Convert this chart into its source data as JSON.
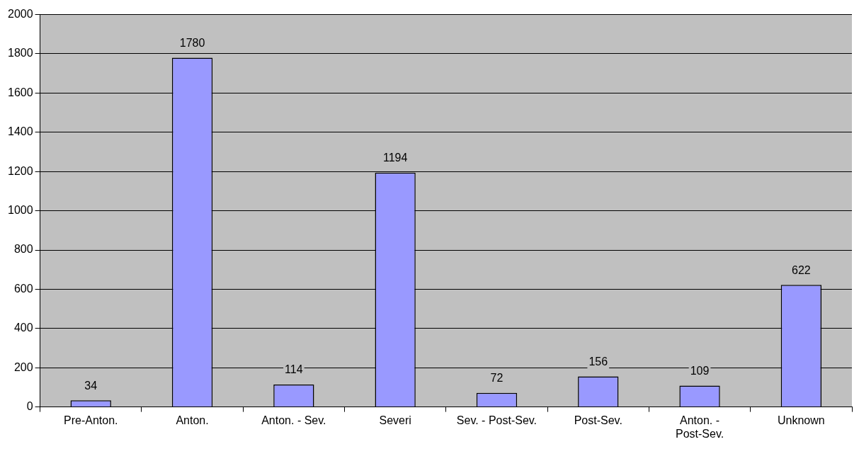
{
  "chart_data": {
    "type": "bar",
    "categories": [
      "Pre-Anton.",
      "Anton.",
      "Anton. - Sev.",
      "Severi",
      "Sev. - Post-Sev.",
      "Post-Sev.",
      "Anton. - Post-Sev.",
      "Unknown"
    ],
    "values": [
      34,
      1780,
      114,
      1194,
      72,
      156,
      109,
      622
    ],
    "color": "#9999ff",
    "ylim": [
      0,
      2000
    ],
    "yticks": [
      0,
      200,
      400,
      600,
      800,
      1000,
      1200,
      1400,
      1600,
      1800,
      2000
    ],
    "grid": "y",
    "data_labels": true,
    "legend": false
  }
}
